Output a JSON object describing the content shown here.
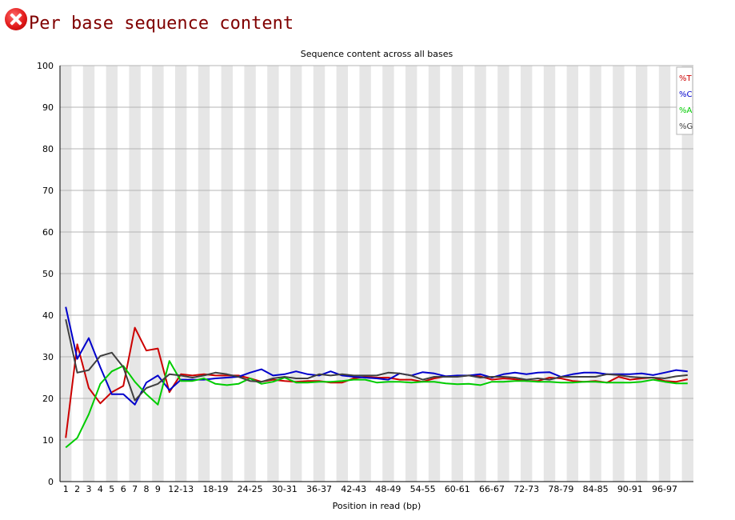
{
  "page": {
    "title": "Per base sequence content",
    "status_icon": "fail-icon"
  },
  "chart_data": {
    "type": "line",
    "title": "Sequence content across all bases",
    "xlabel": "Position in read (bp)",
    "ylabel": "",
    "ylim": [
      0,
      100
    ],
    "yticks": [
      0,
      10,
      20,
      30,
      40,
      50,
      60,
      70,
      80,
      90,
      100
    ],
    "grid": true,
    "legend": "top-right",
    "categories": [
      "1",
      "2",
      "3",
      "4",
      "5",
      "6",
      "7",
      "8",
      "9",
      "10-11",
      "12-13",
      "14-15",
      "16-17",
      "18-19",
      "20-21",
      "22-23",
      "24-25",
      "26-27",
      "28-29",
      "30-31",
      "32-33",
      "34-35",
      "36-37",
      "38-39",
      "40-41",
      "42-43",
      "44-45",
      "46-47",
      "48-49",
      "50-51",
      "52-53",
      "54-55",
      "56-57",
      "58-59",
      "60-61",
      "62-63",
      "64-65",
      "66-67",
      "68-69",
      "70-71",
      "72-73",
      "74-75",
      "76-77",
      "78-79",
      "80-81",
      "82-83",
      "84-85",
      "86-87",
      "88-89",
      "90-91",
      "92-93",
      "94-95",
      "96-97",
      "98-99",
      "100-101"
    ],
    "xtick_labels": [
      "1",
      "2",
      "3",
      "4",
      "5",
      "6",
      "7",
      "8",
      "9",
      "12-13",
      "18-19",
      "24-25",
      "30-31",
      "36-37",
      "42-43",
      "48-49",
      "54-55",
      "60-61",
      "66-67",
      "72-73",
      "78-79",
      "84-85",
      "90-91",
      "96-97"
    ],
    "series": [
      {
        "name": "%T",
        "color": "#cc0000",
        "values": [
          10.5,
          33,
          22.5,
          18.8,
          21.5,
          23,
          37,
          31.5,
          32,
          21.5,
          25.8,
          25.5,
          25.8,
          25.5,
          25.5,
          25.5,
          24.8,
          24,
          24.5,
          24.2,
          24,
          24.2,
          24.2,
          23.8,
          23.8,
          24.8,
          25.2,
          25,
          25,
          24.5,
          24.5,
          24,
          24.8,
          25.3,
          25.3,
          25.5,
          25.3,
          24.5,
          24.8,
          24.6,
          24.2,
          24.2,
          25,
          24.8,
          24.2,
          24,
          24.2,
          23.8,
          25.2,
          24.5,
          24.8,
          25,
          24.2,
          24,
          24.6
        ]
      },
      {
        "name": "%C",
        "color": "#0000cc",
        "values": [
          42,
          29.5,
          34.5,
          27.5,
          21,
          21,
          18.5,
          23.8,
          25.5,
          22,
          24.5,
          24.5,
          24.5,
          24.8,
          25,
          25.2,
          26.2,
          27,
          25.5,
          25.8,
          26.5,
          25.8,
          25.5,
          26.5,
          25.5,
          25.2,
          25,
          24.8,
          24.5,
          26,
          25.5,
          26.3,
          26,
          25.3,
          25.5,
          25.5,
          25.8,
          25,
          25.8,
          26.2,
          25.8,
          26.2,
          26.3,
          25.2,
          25.8,
          26.2,
          26.2,
          25.8,
          25.8,
          25.8,
          26,
          25.6,
          26.2,
          26.8,
          26.5
        ]
      },
      {
        "name": "%A",
        "color": "#00cc00",
        "values": [
          8.2,
          10.5,
          16.2,
          23.5,
          26.5,
          27.8,
          24,
          21,
          18.5,
          29,
          24.2,
          24.2,
          24.8,
          23.5,
          23.2,
          23.5,
          24.8,
          23.5,
          24,
          25,
          23.8,
          23.8,
          24,
          24,
          24.2,
          24.5,
          24.5,
          23.8,
          24,
          24,
          23.8,
          24,
          24,
          23.6,
          23.4,
          23.5,
          23.2,
          24,
          24,
          24.2,
          24.2,
          24,
          24,
          23.8,
          23.8,
          24,
          24,
          23.8,
          23.8,
          23.8,
          24,
          24.5,
          24,
          23.6,
          23.6
        ]
      },
      {
        "name": "%G",
        "color": "#404040",
        "values": [
          39,
          26.2,
          26.8,
          30.2,
          31,
          27.5,
          19.5,
          22.5,
          23.5,
          25.8,
          25.5,
          25,
          25.5,
          26.2,
          25.8,
          25.2,
          24.2,
          24,
          24.8,
          25.2,
          24.8,
          24.8,
          25.8,
          25.5,
          25.8,
          25.5,
          25.5,
          25.5,
          26.2,
          26,
          25.5,
          24.5,
          25.2,
          25.2,
          25.2,
          25.5,
          25,
          25.2,
          25.2,
          25,
          24.5,
          24.8,
          24.5,
          25.2,
          25.2,
          25.2,
          25.2,
          25.8,
          25.6,
          25.2,
          25,
          25,
          24.8,
          25.3,
          25.6
        ]
      }
    ]
  }
}
